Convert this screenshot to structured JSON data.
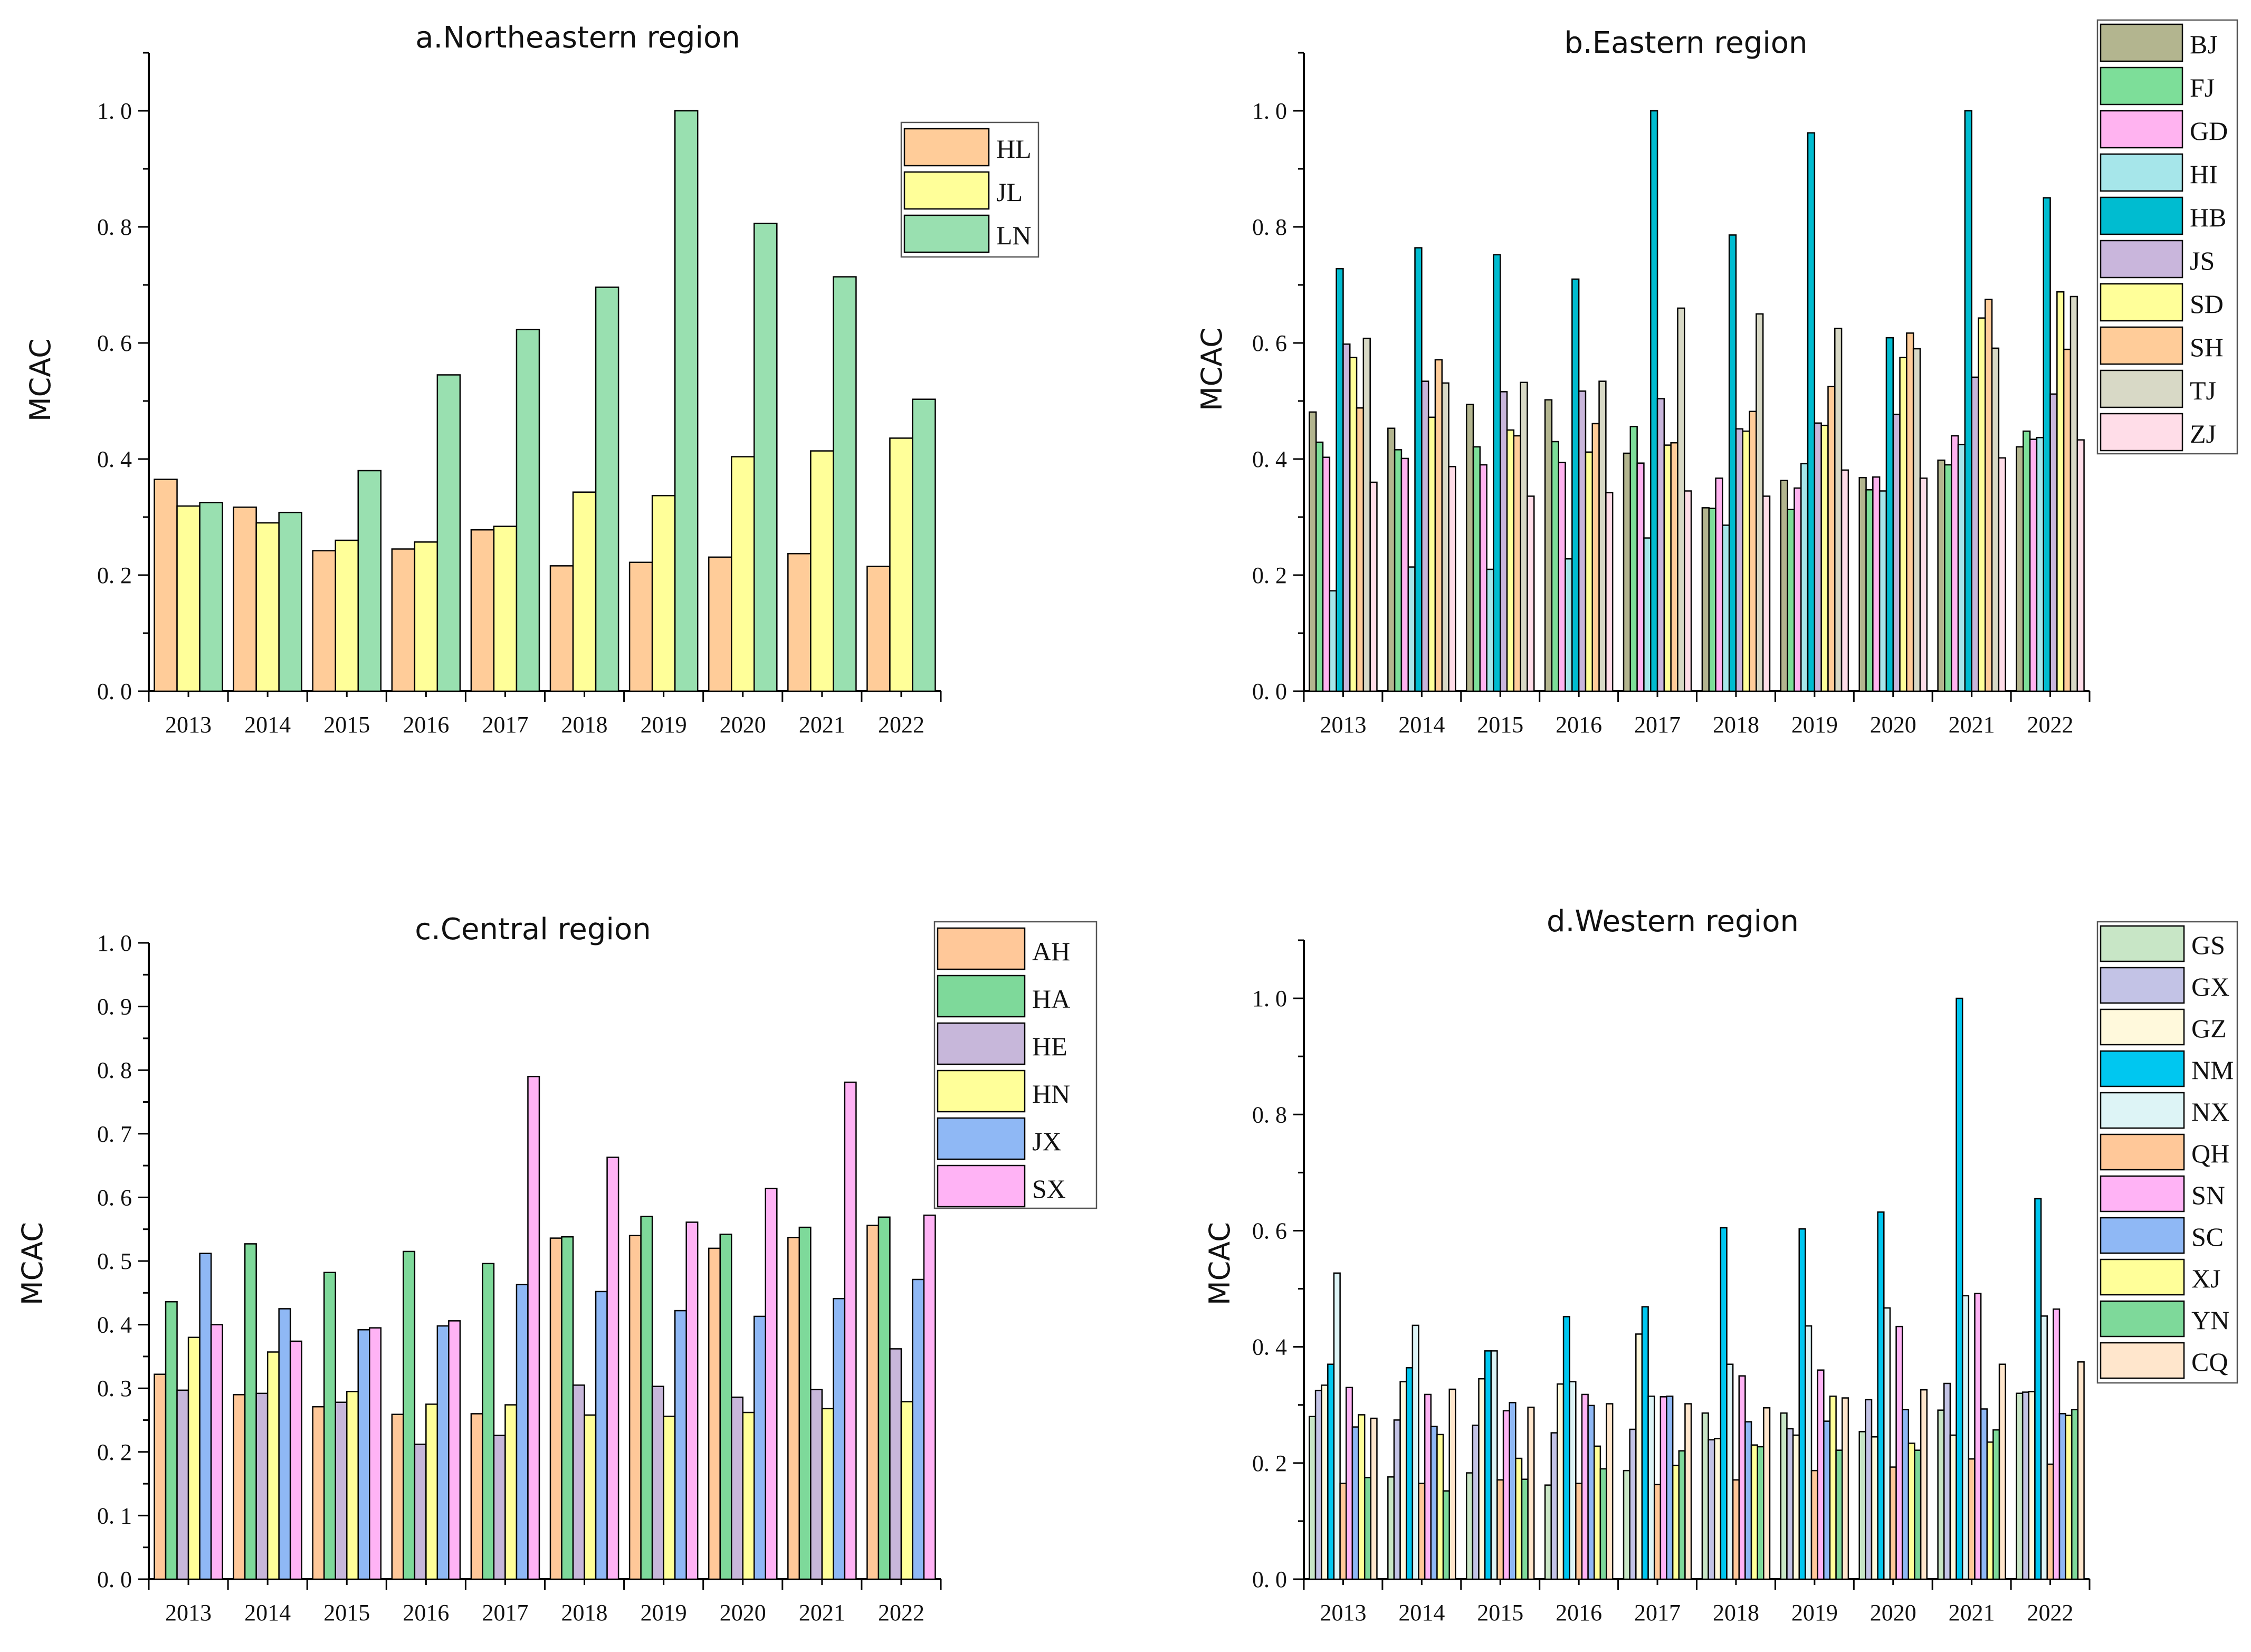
{
  "chart_data": [
    {
      "type": "bar",
      "title": "a.Northeastern region",
      "ylabel": "MCAC",
      "ylim": [
        0,
        1.1
      ],
      "yticks": [
        0.0,
        0.2,
        0.4,
        0.6,
        0.8,
        1.0
      ],
      "ytick_labels": [
        "0. 0",
        "0. 2",
        "0. 4",
        "0. 6",
        "0. 8",
        "1. 0"
      ],
      "categories": [
        "2013",
        "2014",
        "2015",
        "2016",
        "2017",
        "2018",
        "2019",
        "2020",
        "2021",
        "2022"
      ],
      "legend_position": "top-right",
      "series": [
        {
          "name": "HL",
          "color": "#FFCC99",
          "values": [
            0.365,
            0.317,
            0.242,
            0.245,
            0.278,
            0.216,
            0.222,
            0.231,
            0.237,
            0.215
          ]
        },
        {
          "name": "JL",
          "color": "#FFFF99",
          "values": [
            0.319,
            0.29,
            0.26,
            0.257,
            0.284,
            0.343,
            0.337,
            0.404,
            0.414,
            0.436
          ]
        },
        {
          "name": "LN",
          "color": "#99E0B0",
          "values": [
            0.325,
            0.308,
            0.38,
            0.545,
            0.623,
            0.696,
            1.0,
            0.806,
            0.714,
            0.503
          ]
        }
      ]
    },
    {
      "type": "bar",
      "title": "b.Eastern region",
      "ylabel": "MCAC",
      "ylim": [
        0,
        1.1
      ],
      "yticks": [
        0.0,
        0.2,
        0.4,
        0.6,
        0.8,
        1.0
      ],
      "ytick_labels": [
        "0. 0",
        "0. 2",
        "0. 4",
        "0. 6",
        "0. 8",
        "1. 0"
      ],
      "categories": [
        "2013",
        "2014",
        "2015",
        "2016",
        "2017",
        "2018",
        "2019",
        "2020",
        "2021",
        "2022"
      ],
      "legend_position": "top-right",
      "series": [
        {
          "name": "BJ",
          "color": "#B3B58F",
          "values": [
            0.481,
            0.453,
            0.494,
            0.502,
            0.41,
            0.316,
            0.363,
            0.368,
            0.398,
            0.421
          ]
        },
        {
          "name": "FJ",
          "color": "#7DDE99",
          "values": [
            0.429,
            0.416,
            0.421,
            0.43,
            0.456,
            0.315,
            0.313,
            0.347,
            0.39,
            0.448
          ]
        },
        {
          "name": "GD",
          "color": "#FFB3F0",
          "values": [
            0.403,
            0.401,
            0.39,
            0.394,
            0.393,
            0.367,
            0.35,
            0.369,
            0.44,
            0.434
          ]
        },
        {
          "name": "HI",
          "color": "#A6E6EA",
          "values": [
            0.173,
            0.214,
            0.21,
            0.228,
            0.264,
            0.286,
            0.392,
            0.345,
            0.425,
            0.437
          ]
        },
        {
          "name": "HB",
          "color": "#00BCD0",
          "values": [
            0.728,
            0.764,
            0.752,
            0.71,
            1.0,
            0.786,
            0.962,
            0.609,
            1.0,
            0.85
          ]
        },
        {
          "name": "JS",
          "color": "#C9B6DC",
          "values": [
            0.598,
            0.534,
            0.516,
            0.517,
            0.504,
            0.452,
            0.462,
            0.477,
            0.541,
            0.512
          ]
        },
        {
          "name": "SD",
          "color": "#FFFF99",
          "values": [
            0.575,
            0.472,
            0.45,
            0.412,
            0.424,
            0.448,
            0.458,
            0.575,
            0.643,
            0.688
          ]
        },
        {
          "name": "SH",
          "color": "#FFCC99",
          "values": [
            0.488,
            0.571,
            0.44,
            0.461,
            0.428,
            0.482,
            0.525,
            0.617,
            0.675,
            0.589
          ]
        },
        {
          "name": "TJ",
          "color": "#D8D9C6",
          "values": [
            0.608,
            0.531,
            0.532,
            0.534,
            0.66,
            0.65,
            0.625,
            0.59,
            0.591,
            0.68
          ]
        },
        {
          "name": "ZJ",
          "color": "#FFDDE8",
          "values": [
            0.36,
            0.387,
            0.336,
            0.342,
            0.345,
            0.336,
            0.381,
            0.367,
            0.402,
            0.433
          ]
        }
      ]
    },
    {
      "type": "bar",
      "title": "c.Central region",
      "ylabel": "MCAC",
      "ylim": [
        0,
        1.0
      ],
      "yticks": [
        0.0,
        0.1,
        0.2,
        0.3,
        0.4,
        0.5,
        0.6,
        0.7,
        0.8,
        0.9,
        1.0
      ],
      "ytick_labels": [
        "0. 0",
        "0. 1",
        "0. 2",
        "0. 3",
        "0. 4",
        "0. 5",
        "0. 6",
        "0. 7",
        "0. 8",
        "0. 9",
        "1. 0"
      ],
      "categories": [
        "2013",
        "2014",
        "2015",
        "2016",
        "2017",
        "2018",
        "2019",
        "2020",
        "2021",
        "2022"
      ],
      "legend_position": "top-right",
      "series": [
        {
          "name": "AH",
          "color": "#FFC899",
          "values": [
            0.322,
            0.29,
            0.271,
            0.259,
            0.26,
            0.536,
            0.54,
            0.52,
            0.537,
            0.556
          ]
        },
        {
          "name": "HA",
          "color": "#7ED99A",
          "values": [
            0.436,
            0.527,
            0.482,
            0.515,
            0.496,
            0.538,
            0.57,
            0.542,
            0.553,
            0.569
          ]
        },
        {
          "name": "HE",
          "color": "#C7B7DA",
          "values": [
            0.297,
            0.292,
            0.278,
            0.212,
            0.226,
            0.305,
            0.303,
            0.286,
            0.298,
            0.362
          ]
        },
        {
          "name": "HN",
          "color": "#FFFF99",
          "values": [
            0.38,
            0.357,
            0.295,
            0.275,
            0.274,
            0.258,
            0.256,
            0.262,
            0.268,
            0.279
          ]
        },
        {
          "name": "JX",
          "color": "#8FB8F5",
          "values": [
            0.512,
            0.425,
            0.392,
            0.398,
            0.463,
            0.452,
            0.422,
            0.413,
            0.441,
            0.471
          ]
        },
        {
          "name": "SX",
          "color": "#FFB3F5",
          "values": [
            0.4,
            0.374,
            0.395,
            0.406,
            0.79,
            0.663,
            0.561,
            0.614,
            0.781,
            0.572
          ]
        }
      ]
    },
    {
      "type": "bar",
      "title": "d.Western region",
      "ylabel": "MCAC",
      "ylim": [
        0,
        1.1
      ],
      "yticks": [
        0.0,
        0.2,
        0.4,
        0.6,
        0.8,
        1.0
      ],
      "ytick_labels": [
        "0. 0",
        "0. 2",
        "0. 4",
        "0. 6",
        "0. 8",
        "1. 0"
      ],
      "categories": [
        "2013",
        "2014",
        "2015",
        "2016",
        "2017",
        "2018",
        "2019",
        "2020",
        "2021",
        "2022"
      ],
      "legend_position": "top-right",
      "series": [
        {
          "name": "GS",
          "color": "#C8E6C6",
          "values": [
            0.28,
            0.176,
            0.183,
            0.162,
            0.187,
            0.286,
            0.286,
            0.254,
            0.291,
            0.32
          ]
        },
        {
          "name": "GX",
          "color": "#C3C3E6",
          "values": [
            0.325,
            0.274,
            0.265,
            0.252,
            0.258,
            0.24,
            0.259,
            0.309,
            0.337,
            0.322
          ]
        },
        {
          "name": "GZ",
          "color": "#FFF9DC",
          "values": [
            0.334,
            0.34,
            0.345,
            0.336,
            0.422,
            0.242,
            0.248,
            0.245,
            0.248,
            0.323
          ]
        },
        {
          "name": "NM",
          "color": "#00C7F0",
          "values": [
            0.37,
            0.364,
            0.393,
            0.452,
            0.469,
            0.605,
            0.603,
            0.632,
            1.0,
            0.655
          ]
        },
        {
          "name": "NX",
          "color": "#DDF4F6",
          "values": [
            0.527,
            0.437,
            0.393,
            0.34,
            0.315,
            0.37,
            0.436,
            0.467,
            0.488,
            0.453
          ]
        },
        {
          "name": "QH",
          "color": "#FFC899",
          "values": [
            0.165,
            0.165,
            0.171,
            0.165,
            0.163,
            0.171,
            0.187,
            0.193,
            0.207,
            0.198
          ]
        },
        {
          "name": "SN",
          "color": "#FFB3F5",
          "values": [
            0.33,
            0.318,
            0.29,
            0.318,
            0.314,
            0.35,
            0.36,
            0.435,
            0.492,
            0.465
          ]
        },
        {
          "name": "SC",
          "color": "#8FB8F5",
          "values": [
            0.262,
            0.263,
            0.304,
            0.299,
            0.315,
            0.271,
            0.272,
            0.292,
            0.293,
            0.285
          ]
        },
        {
          "name": "XJ",
          "color": "#FFFF99",
          "values": [
            0.283,
            0.249,
            0.208,
            0.229,
            0.196,
            0.231,
            0.315,
            0.234,
            0.236,
            0.282
          ]
        },
        {
          "name": "YN",
          "color": "#7ED99A",
          "values": [
            0.175,
            0.152,
            0.172,
            0.19,
            0.221,
            0.228,
            0.222,
            0.222,
            0.257,
            0.292
          ]
        },
        {
          "name": "CQ",
          "color": "#FFE6CC",
          "values": [
            0.277,
            0.327,
            0.296,
            0.302,
            0.302,
            0.295,
            0.312,
            0.326,
            0.37,
            0.374
          ]
        }
      ]
    }
  ]
}
